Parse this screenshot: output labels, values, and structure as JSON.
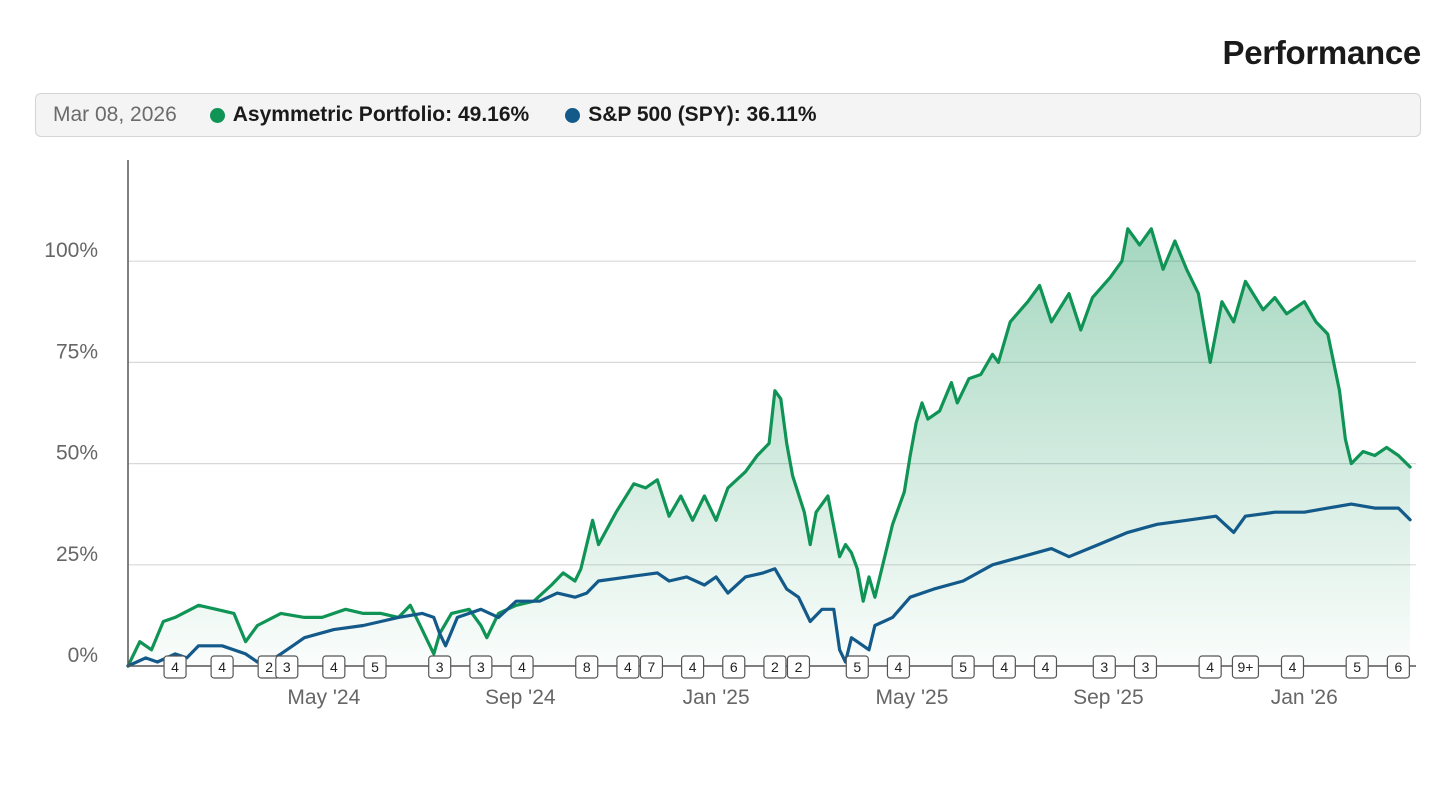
{
  "header": {
    "title": "Performance"
  },
  "legend": {
    "date": "Mar 08, 2026",
    "portfolio_label": "Asymmetric Portfolio: 49.16%",
    "benchmark_label": "S&P 500 (SPY): 36.11%"
  },
  "colors": {
    "portfolio": "#0f9456",
    "benchmark": "#135a8a",
    "grid": "#d8d8d8",
    "axis": "#555555"
  },
  "chart_data": {
    "type": "line",
    "title": "Performance",
    "x_range": [
      2024.0,
      2026.19
    ],
    "ylim": [
      0,
      125
    ],
    "y_ticks": [
      0,
      25,
      50,
      75,
      100
    ],
    "y_tick_labels": [
      "0%",
      "25%",
      "50%",
      "75%",
      "100%"
    ],
    "x_ticks": [
      2024.333,
      2024.667,
      2025.0,
      2025.333,
      2025.667,
      2026.0
    ],
    "x_tick_labels": [
      "May '24",
      "Sep '24",
      "Jan '25",
      "May '25",
      "Sep '25",
      "Jan '26"
    ],
    "series": [
      {
        "name": "Asymmetric Portfolio",
        "final_value_pct": 49.16,
        "points": [
          [
            2024.0,
            0
          ],
          [
            2024.02,
            6
          ],
          [
            2024.04,
            4
          ],
          [
            2024.06,
            11
          ],
          [
            2024.08,
            12
          ],
          [
            2024.12,
            15
          ],
          [
            2024.15,
            14
          ],
          [
            2024.18,
            13
          ],
          [
            2024.2,
            6
          ],
          [
            2024.22,
            10
          ],
          [
            2024.26,
            13
          ],
          [
            2024.3,
            12
          ],
          [
            2024.33,
            12
          ],
          [
            2024.37,
            14
          ],
          [
            2024.4,
            13
          ],
          [
            2024.43,
            13
          ],
          [
            2024.46,
            12
          ],
          [
            2024.48,
            15
          ],
          [
            2024.5,
            9
          ],
          [
            2024.51,
            6
          ],
          [
            2024.52,
            3
          ],
          [
            2024.53,
            8
          ],
          [
            2024.55,
            13
          ],
          [
            2024.58,
            14
          ],
          [
            2024.6,
            10
          ],
          [
            2024.61,
            7
          ],
          [
            2024.63,
            13
          ],
          [
            2024.66,
            15
          ],
          [
            2024.69,
            16
          ],
          [
            2024.72,
            20
          ],
          [
            2024.74,
            23
          ],
          [
            2024.76,
            21
          ],
          [
            2024.77,
            24
          ],
          [
            2024.79,
            36
          ],
          [
            2024.8,
            30
          ],
          [
            2024.83,
            38
          ],
          [
            2024.86,
            45
          ],
          [
            2024.88,
            44
          ],
          [
            2024.9,
            46
          ],
          [
            2024.92,
            37
          ],
          [
            2024.94,
            42
          ],
          [
            2024.96,
            36
          ],
          [
            2024.98,
            42
          ],
          [
            2025.0,
            36
          ],
          [
            2025.02,
            44
          ],
          [
            2025.05,
            48
          ],
          [
            2025.07,
            52
          ],
          [
            2025.09,
            55
          ],
          [
            2025.1,
            68
          ],
          [
            2025.11,
            66
          ],
          [
            2025.12,
            55
          ],
          [
            2025.13,
            47
          ],
          [
            2025.15,
            38
          ],
          [
            2025.16,
            30
          ],
          [
            2025.17,
            38
          ],
          [
            2025.19,
            42
          ],
          [
            2025.21,
            27
          ],
          [
            2025.22,
            30
          ],
          [
            2025.23,
            28
          ],
          [
            2025.24,
            24
          ],
          [
            2025.25,
            16
          ],
          [
            2025.26,
            22
          ],
          [
            2025.27,
            17
          ],
          [
            2025.28,
            23
          ],
          [
            2025.29,
            29
          ],
          [
            2025.3,
            35
          ],
          [
            2025.32,
            43
          ],
          [
            2025.33,
            52
          ],
          [
            2025.34,
            60
          ],
          [
            2025.35,
            65
          ],
          [
            2025.36,
            61
          ],
          [
            2025.38,
            63
          ],
          [
            2025.4,
            70
          ],
          [
            2025.41,
            65
          ],
          [
            2025.43,
            71
          ],
          [
            2025.45,
            72
          ],
          [
            2025.47,
            77
          ],
          [
            2025.48,
            75
          ],
          [
            2025.5,
            85
          ],
          [
            2025.53,
            90
          ],
          [
            2025.55,
            94
          ],
          [
            2025.57,
            85
          ],
          [
            2025.6,
            92
          ],
          [
            2025.62,
            83
          ],
          [
            2025.64,
            91
          ],
          [
            2025.67,
            96
          ],
          [
            2025.69,
            100
          ],
          [
            2025.7,
            108
          ],
          [
            2025.72,
            104
          ],
          [
            2025.74,
            108
          ],
          [
            2025.76,
            98
          ],
          [
            2025.78,
            105
          ],
          [
            2025.8,
            98
          ],
          [
            2025.82,
            92
          ],
          [
            2025.84,
            75
          ],
          [
            2025.86,
            90
          ],
          [
            2025.88,
            85
          ],
          [
            2025.9,
            95
          ],
          [
            2025.93,
            88
          ],
          [
            2025.95,
            91
          ],
          [
            2025.97,
            87
          ],
          [
            2026.0,
            90
          ],
          [
            2026.02,
            85
          ],
          [
            2026.04,
            82
          ],
          [
            2026.06,
            68
          ],
          [
            2026.07,
            56
          ],
          [
            2026.08,
            50
          ],
          [
            2026.1,
            53
          ],
          [
            2026.12,
            52
          ],
          [
            2026.14,
            54
          ],
          [
            2026.16,
            52
          ],
          [
            2026.18,
            49.16
          ]
        ]
      },
      {
        "name": "S&P 500 (SPY)",
        "final_value_pct": 36.11,
        "points": [
          [
            2024.0,
            0
          ],
          [
            2024.03,
            2
          ],
          [
            2024.05,
            1
          ],
          [
            2024.08,
            3
          ],
          [
            2024.1,
            2
          ],
          [
            2024.12,
            5
          ],
          [
            2024.16,
            5
          ],
          [
            2024.2,
            3
          ],
          [
            2024.22,
            1
          ],
          [
            2024.25,
            2
          ],
          [
            2024.28,
            5
          ],
          [
            2024.3,
            7
          ],
          [
            2024.35,
            9
          ],
          [
            2024.4,
            10
          ],
          [
            2024.43,
            11
          ],
          [
            2024.46,
            12
          ],
          [
            2024.5,
            13
          ],
          [
            2024.52,
            12
          ],
          [
            2024.53,
            8
          ],
          [
            2024.54,
            5
          ],
          [
            2024.56,
            12
          ],
          [
            2024.6,
            14
          ],
          [
            2024.63,
            12
          ],
          [
            2024.66,
            16
          ],
          [
            2024.7,
            16
          ],
          [
            2024.73,
            18
          ],
          [
            2024.76,
            17
          ],
          [
            2024.78,
            18
          ],
          [
            2024.8,
            21
          ],
          [
            2024.85,
            22
          ],
          [
            2024.9,
            23
          ],
          [
            2024.92,
            21
          ],
          [
            2024.95,
            22
          ],
          [
            2024.98,
            20
          ],
          [
            2025.0,
            22
          ],
          [
            2025.02,
            18
          ],
          [
            2025.05,
            22
          ],
          [
            2025.08,
            23
          ],
          [
            2025.1,
            24
          ],
          [
            2025.12,
            19
          ],
          [
            2025.14,
            17
          ],
          [
            2025.16,
            11
          ],
          [
            2025.18,
            14
          ],
          [
            2025.2,
            14
          ],
          [
            2025.21,
            4
          ],
          [
            2025.22,
            1
          ],
          [
            2025.23,
            7
          ],
          [
            2025.24,
            6
          ],
          [
            2025.26,
            4
          ],
          [
            2025.27,
            10
          ],
          [
            2025.3,
            12
          ],
          [
            2025.33,
            17
          ],
          [
            2025.37,
            19
          ],
          [
            2025.42,
            21
          ],
          [
            2025.47,
            25
          ],
          [
            2025.52,
            27
          ],
          [
            2025.57,
            29
          ],
          [
            2025.6,
            27
          ],
          [
            2025.65,
            30
          ],
          [
            2025.7,
            33
          ],
          [
            2025.75,
            35
          ],
          [
            2025.8,
            36
          ],
          [
            2025.85,
            37
          ],
          [
            2025.88,
            33
          ],
          [
            2025.9,
            37
          ],
          [
            2025.95,
            38
          ],
          [
            2026.0,
            38
          ],
          [
            2026.04,
            39
          ],
          [
            2026.08,
            40
          ],
          [
            2026.12,
            39
          ],
          [
            2026.16,
            39
          ],
          [
            2026.18,
            36.11
          ]
        ]
      }
    ],
    "annotation_markers": [
      {
        "x": 2024.08,
        "label": "4"
      },
      {
        "x": 2024.16,
        "label": "4"
      },
      {
        "x": 2024.24,
        "label": "2"
      },
      {
        "x": 2024.27,
        "label": "3"
      },
      {
        "x": 2024.35,
        "label": "4"
      },
      {
        "x": 2024.42,
        "label": "5"
      },
      {
        "x": 2024.53,
        "label": "3"
      },
      {
        "x": 2024.6,
        "label": "3"
      },
      {
        "x": 2024.67,
        "label": "4"
      },
      {
        "x": 2024.78,
        "label": "8"
      },
      {
        "x": 2024.85,
        "label": "4"
      },
      {
        "x": 2024.89,
        "label": "7"
      },
      {
        "x": 2024.96,
        "label": "4"
      },
      {
        "x": 2025.03,
        "label": "6"
      },
      {
        "x": 2025.1,
        "label": "2"
      },
      {
        "x": 2025.14,
        "label": "2"
      },
      {
        "x": 2025.24,
        "label": "5"
      },
      {
        "x": 2025.31,
        "label": "4"
      },
      {
        "x": 2025.42,
        "label": "5"
      },
      {
        "x": 2025.49,
        "label": "4"
      },
      {
        "x": 2025.56,
        "label": "4"
      },
      {
        "x": 2025.66,
        "label": "3"
      },
      {
        "x": 2025.73,
        "label": "3"
      },
      {
        "x": 2025.84,
        "label": "4"
      },
      {
        "x": 2025.9,
        "label": "9+"
      },
      {
        "x": 2025.98,
        "label": "4"
      },
      {
        "x": 2026.09,
        "label": "5"
      },
      {
        "x": 2026.16,
        "label": "6"
      }
    ]
  }
}
